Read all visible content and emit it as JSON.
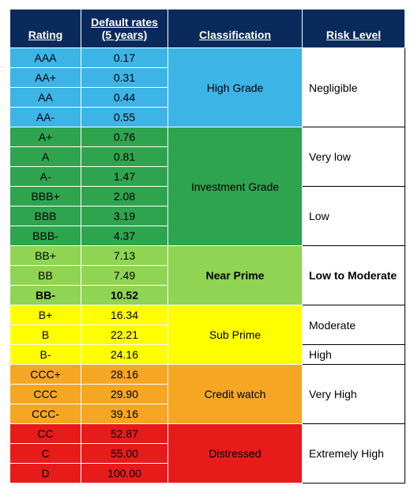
{
  "header": {
    "bg": "#0a2a5c",
    "cols": [
      "Rating",
      "Default rates (5 years)",
      "Classification",
      "Risk Level"
    ]
  },
  "colors": {
    "blue": "#3cb4e6",
    "green": "#2fa44f",
    "lightgreen": "#8fd453",
    "yellow": "#ffff00",
    "orange": "#f5a623",
    "red": "#e81b1b",
    "white": "#ffffff",
    "black": "#000000"
  },
  "rows": [
    {
      "rating": "AAA",
      "rate": "0.17",
      "bg": "blue"
    },
    {
      "rating": "AA+",
      "rate": "0.31",
      "bg": "blue"
    },
    {
      "rating": "AA",
      "rate": "0.44",
      "bg": "blue"
    },
    {
      "rating": "AA-",
      "rate": "0.55",
      "bg": "blue"
    },
    {
      "rating": "A+",
      "rate": "0.76",
      "bg": "green"
    },
    {
      "rating": "A",
      "rate": "0.81",
      "bg": "green"
    },
    {
      "rating": "A-",
      "rate": "1.47",
      "bg": "green"
    },
    {
      "rating": "BBB+",
      "rate": "2.08",
      "bg": "green"
    },
    {
      "rating": "BBB",
      "rate": "3.19",
      "bg": "green"
    },
    {
      "rating": "BBB-",
      "rate": "4.37",
      "bg": "green"
    },
    {
      "rating": "BB+",
      "rate": "7.13",
      "bg": "lightgreen"
    },
    {
      "rating": "BB",
      "rate": "7.49",
      "bg": "lightgreen"
    },
    {
      "rating": "BB-",
      "rate": "10.52",
      "bg": "lightgreen",
      "bold": true
    },
    {
      "rating": "B+",
      "rate": "16.34",
      "bg": "yellow"
    },
    {
      "rating": "B",
      "rate": "22.21",
      "bg": "yellow"
    },
    {
      "rating": "B-",
      "rate": "24.16",
      "bg": "yellow"
    },
    {
      "rating": "CCC+",
      "rate": "28.16",
      "bg": "orange"
    },
    {
      "rating": "CCC",
      "rate": "29.90",
      "bg": "orange"
    },
    {
      "rating": "CCC-",
      "rate": "39.16",
      "bg": "orange"
    },
    {
      "rating": "CC",
      "rate": "52.87",
      "bg": "red"
    },
    {
      "rating": "C",
      "rate": "55.00",
      "bg": "red"
    },
    {
      "rating": "D",
      "rate": "100.00",
      "bg": "red"
    }
  ],
  "classifications": [
    {
      "label": "High Grade",
      "bg": "blue",
      "start": 0,
      "span": 4,
      "bold": false
    },
    {
      "label": "Investment Grade",
      "bg": "green",
      "start": 4,
      "span": 6,
      "bold": false
    },
    {
      "label": "Near Prime",
      "bg": "lightgreen",
      "start": 10,
      "span": 3,
      "bold": true
    },
    {
      "label": "Sub Prime",
      "bg": "yellow",
      "start": 13,
      "span": 3,
      "bold": false
    },
    {
      "label": "Credit watch",
      "bg": "orange",
      "start": 16,
      "span": 3,
      "bold": false
    },
    {
      "label": "Distressed",
      "bg": "red",
      "start": 19,
      "span": 3,
      "bold": false
    }
  ],
  "risks": [
    {
      "label": "Negligible",
      "start": 0,
      "span": 4,
      "bold": false
    },
    {
      "label": "Very low",
      "start": 4,
      "span": 3,
      "bold": false
    },
    {
      "label": "Low",
      "start": 7,
      "span": 3,
      "bold": false
    },
    {
      "label": "Low to Moderate",
      "start": 10,
      "span": 3,
      "bold": true
    },
    {
      "label": "Moderate",
      "start": 13,
      "span": 2,
      "bold": false
    },
    {
      "label": "High",
      "start": 15,
      "span": 1,
      "bold": false
    },
    {
      "label": "Very High",
      "start": 16,
      "span": 3,
      "bold": false
    },
    {
      "label": "Extremely High",
      "start": 19,
      "span": 3,
      "bold": false
    }
  ]
}
